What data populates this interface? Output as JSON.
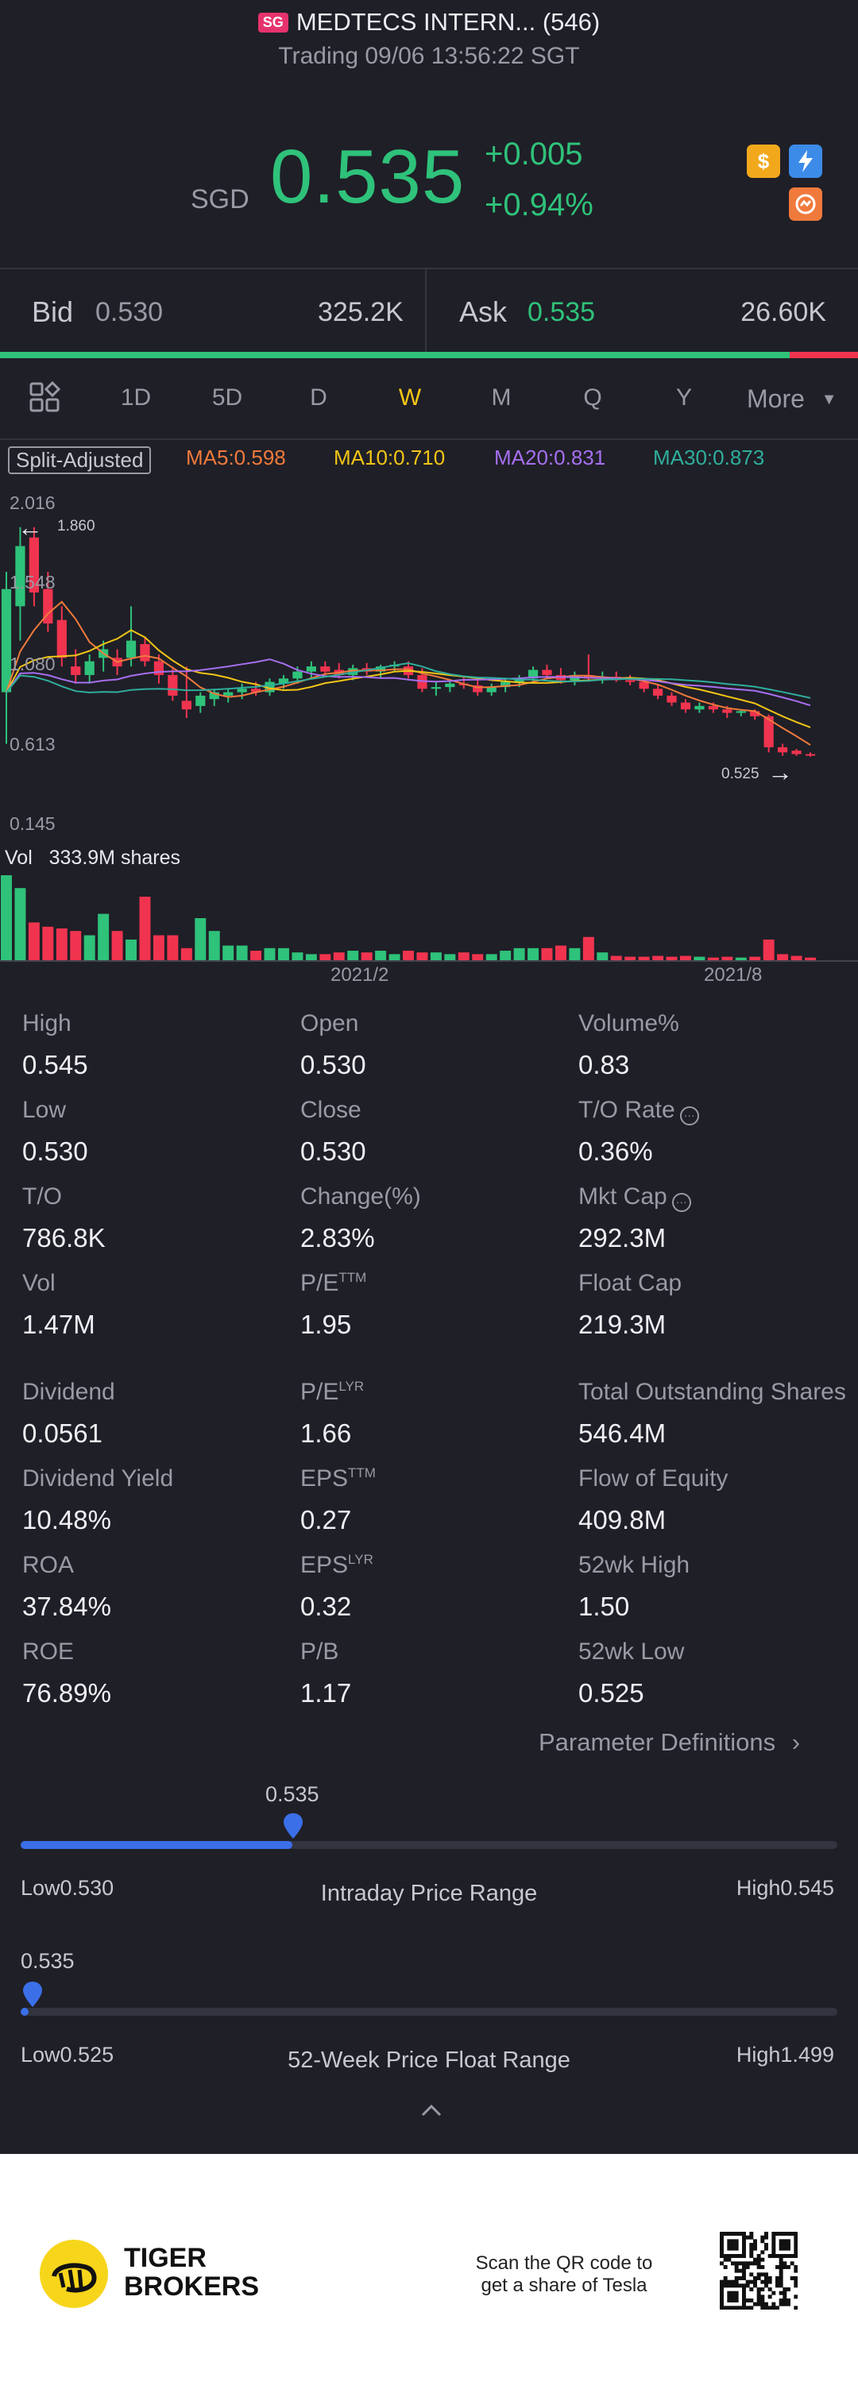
{
  "header": {
    "badge": "SG",
    "title": "MEDTECS INTERN... (546)",
    "subtitle": "Trading 09/06 13:56:22 SGT"
  },
  "quote": {
    "currency": "SGD",
    "price": "0.535",
    "change": "+0.005",
    "change_pct": "+0.94%"
  },
  "orderbook": {
    "bid_label": "Bid",
    "bid_price": "0.530",
    "bid_size": "325.2K",
    "ask_label": "Ask",
    "ask_price": "0.535",
    "ask_size": "26.60K",
    "bid_ratio": 0.92
  },
  "tabs": [
    {
      "label": "1D"
    },
    {
      "label": "5D"
    },
    {
      "label": "D"
    },
    {
      "label": "W",
      "active": true
    },
    {
      "label": "M"
    },
    {
      "label": "Q"
    },
    {
      "label": "Y"
    },
    {
      "label": "More"
    }
  ],
  "chart": {
    "split_label": "Split-Adjusted",
    "ma5": "MA5:0.598",
    "ma10": "MA10:0.710",
    "ma20": "MA20:0.831",
    "ma30": "MA30:0.873",
    "y_labels": [
      "2.016",
      "1.548",
      "1.080",
      "0.613",
      "0.145"
    ],
    "high_marker": "1.860",
    "low_marker": "0.525",
    "vol_label": "Vol",
    "vol_value": "333.9M shares",
    "x_labels": [
      "2021/2",
      "2021/8"
    ],
    "colors": {
      "up": "#2fc27a",
      "down": "#f0344f",
      "ma5": "#f07a3c",
      "ma10": "#f2c516",
      "ma20": "#a66ff0",
      "ma30": "#2fae9c"
    }
  },
  "chart_data": {
    "type": "candlestick",
    "ylim": [
      0.145,
      2.016
    ],
    "candles": [
      {
        "o": 0.9,
        "h": 1.6,
        "l": 0.6,
        "c": 1.5
      },
      {
        "o": 1.4,
        "h": 1.86,
        "l": 1.2,
        "c": 1.75
      },
      {
        "o": 1.8,
        "h": 1.86,
        "l": 1.4,
        "c": 1.48
      },
      {
        "o": 1.5,
        "h": 1.6,
        "l": 1.25,
        "c": 1.3
      },
      {
        "o": 1.32,
        "h": 1.4,
        "l": 1.05,
        "c": 1.1
      },
      {
        "o": 1.05,
        "h": 1.15,
        "l": 0.95,
        "c": 1.0
      },
      {
        "o": 1.0,
        "h": 1.12,
        "l": 0.95,
        "c": 1.08
      },
      {
        "o": 1.1,
        "h": 1.2,
        "l": 1.02,
        "c": 1.15
      },
      {
        "o": 1.1,
        "h": 1.15,
        "l": 1.0,
        "c": 1.05
      },
      {
        "o": 1.1,
        "h": 1.4,
        "l": 1.05,
        "c": 1.2
      },
      {
        "o": 1.18,
        "h": 1.22,
        "l": 1.05,
        "c": 1.08
      },
      {
        "o": 1.08,
        "h": 1.12,
        "l": 0.95,
        "c": 1.0
      },
      {
        "o": 1.0,
        "h": 1.05,
        "l": 0.85,
        "c": 0.88
      },
      {
        "o": 0.85,
        "h": 1.05,
        "l": 0.75,
        "c": 0.8
      },
      {
        "o": 0.82,
        "h": 0.9,
        "l": 0.78,
        "c": 0.88
      },
      {
        "o": 0.86,
        "h": 0.92,
        "l": 0.82,
        "c": 0.9
      },
      {
        "o": 0.88,
        "h": 0.92,
        "l": 0.84,
        "c": 0.9
      },
      {
        "o": 0.9,
        "h": 0.95,
        "l": 0.86,
        "c": 0.92
      },
      {
        "o": 0.92,
        "h": 0.96,
        "l": 0.88,
        "c": 0.9
      },
      {
        "o": 0.9,
        "h": 0.98,
        "l": 0.88,
        "c": 0.96
      },
      {
        "o": 0.95,
        "h": 1.0,
        "l": 0.92,
        "c": 0.98
      },
      {
        "o": 0.98,
        "h": 1.05,
        "l": 0.95,
        "c": 1.02
      },
      {
        "o": 1.02,
        "h": 1.08,
        "l": 0.98,
        "c": 1.05
      },
      {
        "o": 1.05,
        "h": 1.08,
        "l": 1.0,
        "c": 1.02
      },
      {
        "o": 1.03,
        "h": 1.07,
        "l": 0.98,
        "c": 1.0
      },
      {
        "o": 1.0,
        "h": 1.06,
        "l": 0.97,
        "c": 1.04
      },
      {
        "o": 1.04,
        "h": 1.07,
        "l": 1.0,
        "c": 1.02
      },
      {
        "o": 1.02,
        "h": 1.06,
        "l": 0.98,
        "c": 1.05
      },
      {
        "o": 1.05,
        "h": 1.08,
        "l": 1.02,
        "c": 1.06
      },
      {
        "o": 1.05,
        "h": 1.08,
        "l": 0.98,
        "c": 1.0
      },
      {
        "o": 1.0,
        "h": 1.04,
        "l": 0.9,
        "c": 0.92
      },
      {
        "o": 0.92,
        "h": 0.96,
        "l": 0.88,
        "c": 0.93
      },
      {
        "o": 0.93,
        "h": 0.97,
        "l": 0.9,
        "c": 0.95
      },
      {
        "o": 0.95,
        "h": 0.99,
        "l": 0.92,
        "c": 0.94
      },
      {
        "o": 0.94,
        "h": 0.97,
        "l": 0.88,
        "c": 0.9
      },
      {
        "o": 0.9,
        "h": 0.95,
        "l": 0.88,
        "c": 0.93
      },
      {
        "o": 0.93,
        "h": 0.98,
        "l": 0.9,
        "c": 0.96
      },
      {
        "o": 0.96,
        "h": 1.0,
        "l": 0.93,
        "c": 0.98
      },
      {
        "o": 0.98,
        "h": 1.05,
        "l": 0.95,
        "c": 1.03
      },
      {
        "o": 1.03,
        "h": 1.06,
        "l": 0.98,
        "c": 1.0
      },
      {
        "o": 1.0,
        "h": 1.04,
        "l": 0.95,
        "c": 0.97
      },
      {
        "o": 0.97,
        "h": 1.02,
        "l": 0.94,
        "c": 1.0
      },
      {
        "o": 1.0,
        "h": 1.12,
        "l": 0.96,
        "c": 0.98
      },
      {
        "o": 0.98,
        "h": 1.02,
        "l": 0.95,
        "c": 0.99
      },
      {
        "o": 0.99,
        "h": 1.02,
        "l": 0.96,
        "c": 0.97
      },
      {
        "o": 0.97,
        "h": 1.0,
        "l": 0.94,
        "c": 0.96
      },
      {
        "o": 0.96,
        "h": 0.98,
        "l": 0.9,
        "c": 0.92
      },
      {
        "o": 0.92,
        "h": 0.94,
        "l": 0.86,
        "c": 0.88
      },
      {
        "o": 0.88,
        "h": 0.9,
        "l": 0.82,
        "c": 0.84
      },
      {
        "o": 0.84,
        "h": 0.86,
        "l": 0.78,
        "c": 0.8
      },
      {
        "o": 0.8,
        "h": 0.84,
        "l": 0.78,
        "c": 0.82
      },
      {
        "o": 0.82,
        "h": 0.84,
        "l": 0.78,
        "c": 0.8
      },
      {
        "o": 0.8,
        "h": 0.82,
        "l": 0.75,
        "c": 0.78
      },
      {
        "o": 0.78,
        "h": 0.8,
        "l": 0.76,
        "c": 0.79
      },
      {
        "o": 0.79,
        "h": 0.8,
        "l": 0.74,
        "c": 0.76
      },
      {
        "o": 0.76,
        "h": 0.77,
        "l": 0.55,
        "c": 0.58
      },
      {
        "o": 0.58,
        "h": 0.6,
        "l": 0.53,
        "c": 0.55
      },
      {
        "o": 0.56,
        "h": 0.57,
        "l": 0.53,
        "c": 0.54
      },
      {
        "o": 0.54,
        "h": 0.55,
        "l": 0.525,
        "c": 0.535
      }
    ],
    "volume": [
      1.0,
      0.85,
      0.45,
      0.4,
      0.38,
      0.35,
      0.3,
      0.55,
      0.35,
      0.25,
      0.75,
      0.3,
      0.3,
      0.15,
      0.5,
      0.35,
      0.18,
      0.18,
      0.12,
      0.15,
      0.15,
      0.1,
      0.08,
      0.08,
      0.1,
      0.12,
      0.1,
      0.12,
      0.08,
      0.12,
      0.1,
      0.1,
      0.08,
      0.1,
      0.08,
      0.08,
      0.12,
      0.15,
      0.15,
      0.15,
      0.18,
      0.15,
      0.28,
      0.1,
      0.06,
      0.05,
      0.05,
      0.06,
      0.05,
      0.06,
      0.05,
      0.04,
      0.05,
      0.04,
      0.05,
      0.25,
      0.08,
      0.06,
      0.04
    ]
  },
  "stats": [
    {
      "label": "High",
      "value": "0.545"
    },
    {
      "label": "Open",
      "value": "0.530"
    },
    {
      "label": "Volume%",
      "value": "0.83"
    },
    {
      "label": "Low",
      "value": "0.530"
    },
    {
      "label": "Close",
      "value": "0.530"
    },
    {
      "label": "T/O Rate",
      "value": "0.36%",
      "info": true
    },
    {
      "label": "T/O",
      "value": "786.8K"
    },
    {
      "label": "Change(%)",
      "value": "2.83%"
    },
    {
      "label": "Mkt Cap",
      "value": "292.3M",
      "info": true
    },
    {
      "label": "Vol",
      "value": "1.47M"
    },
    {
      "label": "P/E",
      "sup": "TTM",
      "value": "1.95"
    },
    {
      "label": "Float Cap",
      "value": "219.3M"
    },
    {
      "label": "Dividend",
      "value": "0.0561"
    },
    {
      "label": "P/E",
      "sup": "LYR",
      "value": "1.66"
    },
    {
      "label": "Total Outstanding Shares",
      "value": "546.4M"
    },
    {
      "label": "Dividend Yield",
      "value": "10.48%"
    },
    {
      "label": "EPS",
      "sup": "TTM",
      "value": "0.27"
    },
    {
      "label": "Flow of Equity",
      "value": "409.8M"
    },
    {
      "label": "ROA",
      "value": "37.84%"
    },
    {
      "label": "EPS",
      "sup": "LYR",
      "value": "0.32"
    },
    {
      "label": "52wk High",
      "value": "1.50"
    },
    {
      "label": "ROE",
      "value": "76.89%"
    },
    {
      "label": "P/B",
      "value": "1.17"
    },
    {
      "label": "52wk Low",
      "value": "0.525"
    }
  ],
  "param_def": "Parameter Definitions",
  "ranges": {
    "intraday": {
      "current": "0.535",
      "low": "Low0.530",
      "high": "High0.545",
      "title": "Intraday Price Range",
      "fraction": 0.333
    },
    "week52": {
      "current": "0.535",
      "low": "Low0.525",
      "high": "High1.499",
      "title": "52-Week Price Float Range",
      "fraction": 0.01
    }
  },
  "footer": {
    "brand_line1": "TIGER",
    "brand_line2": "BROKERS",
    "qr_text_line1": "Scan the QR code to",
    "qr_text_line2": "get a share of Tesla"
  }
}
